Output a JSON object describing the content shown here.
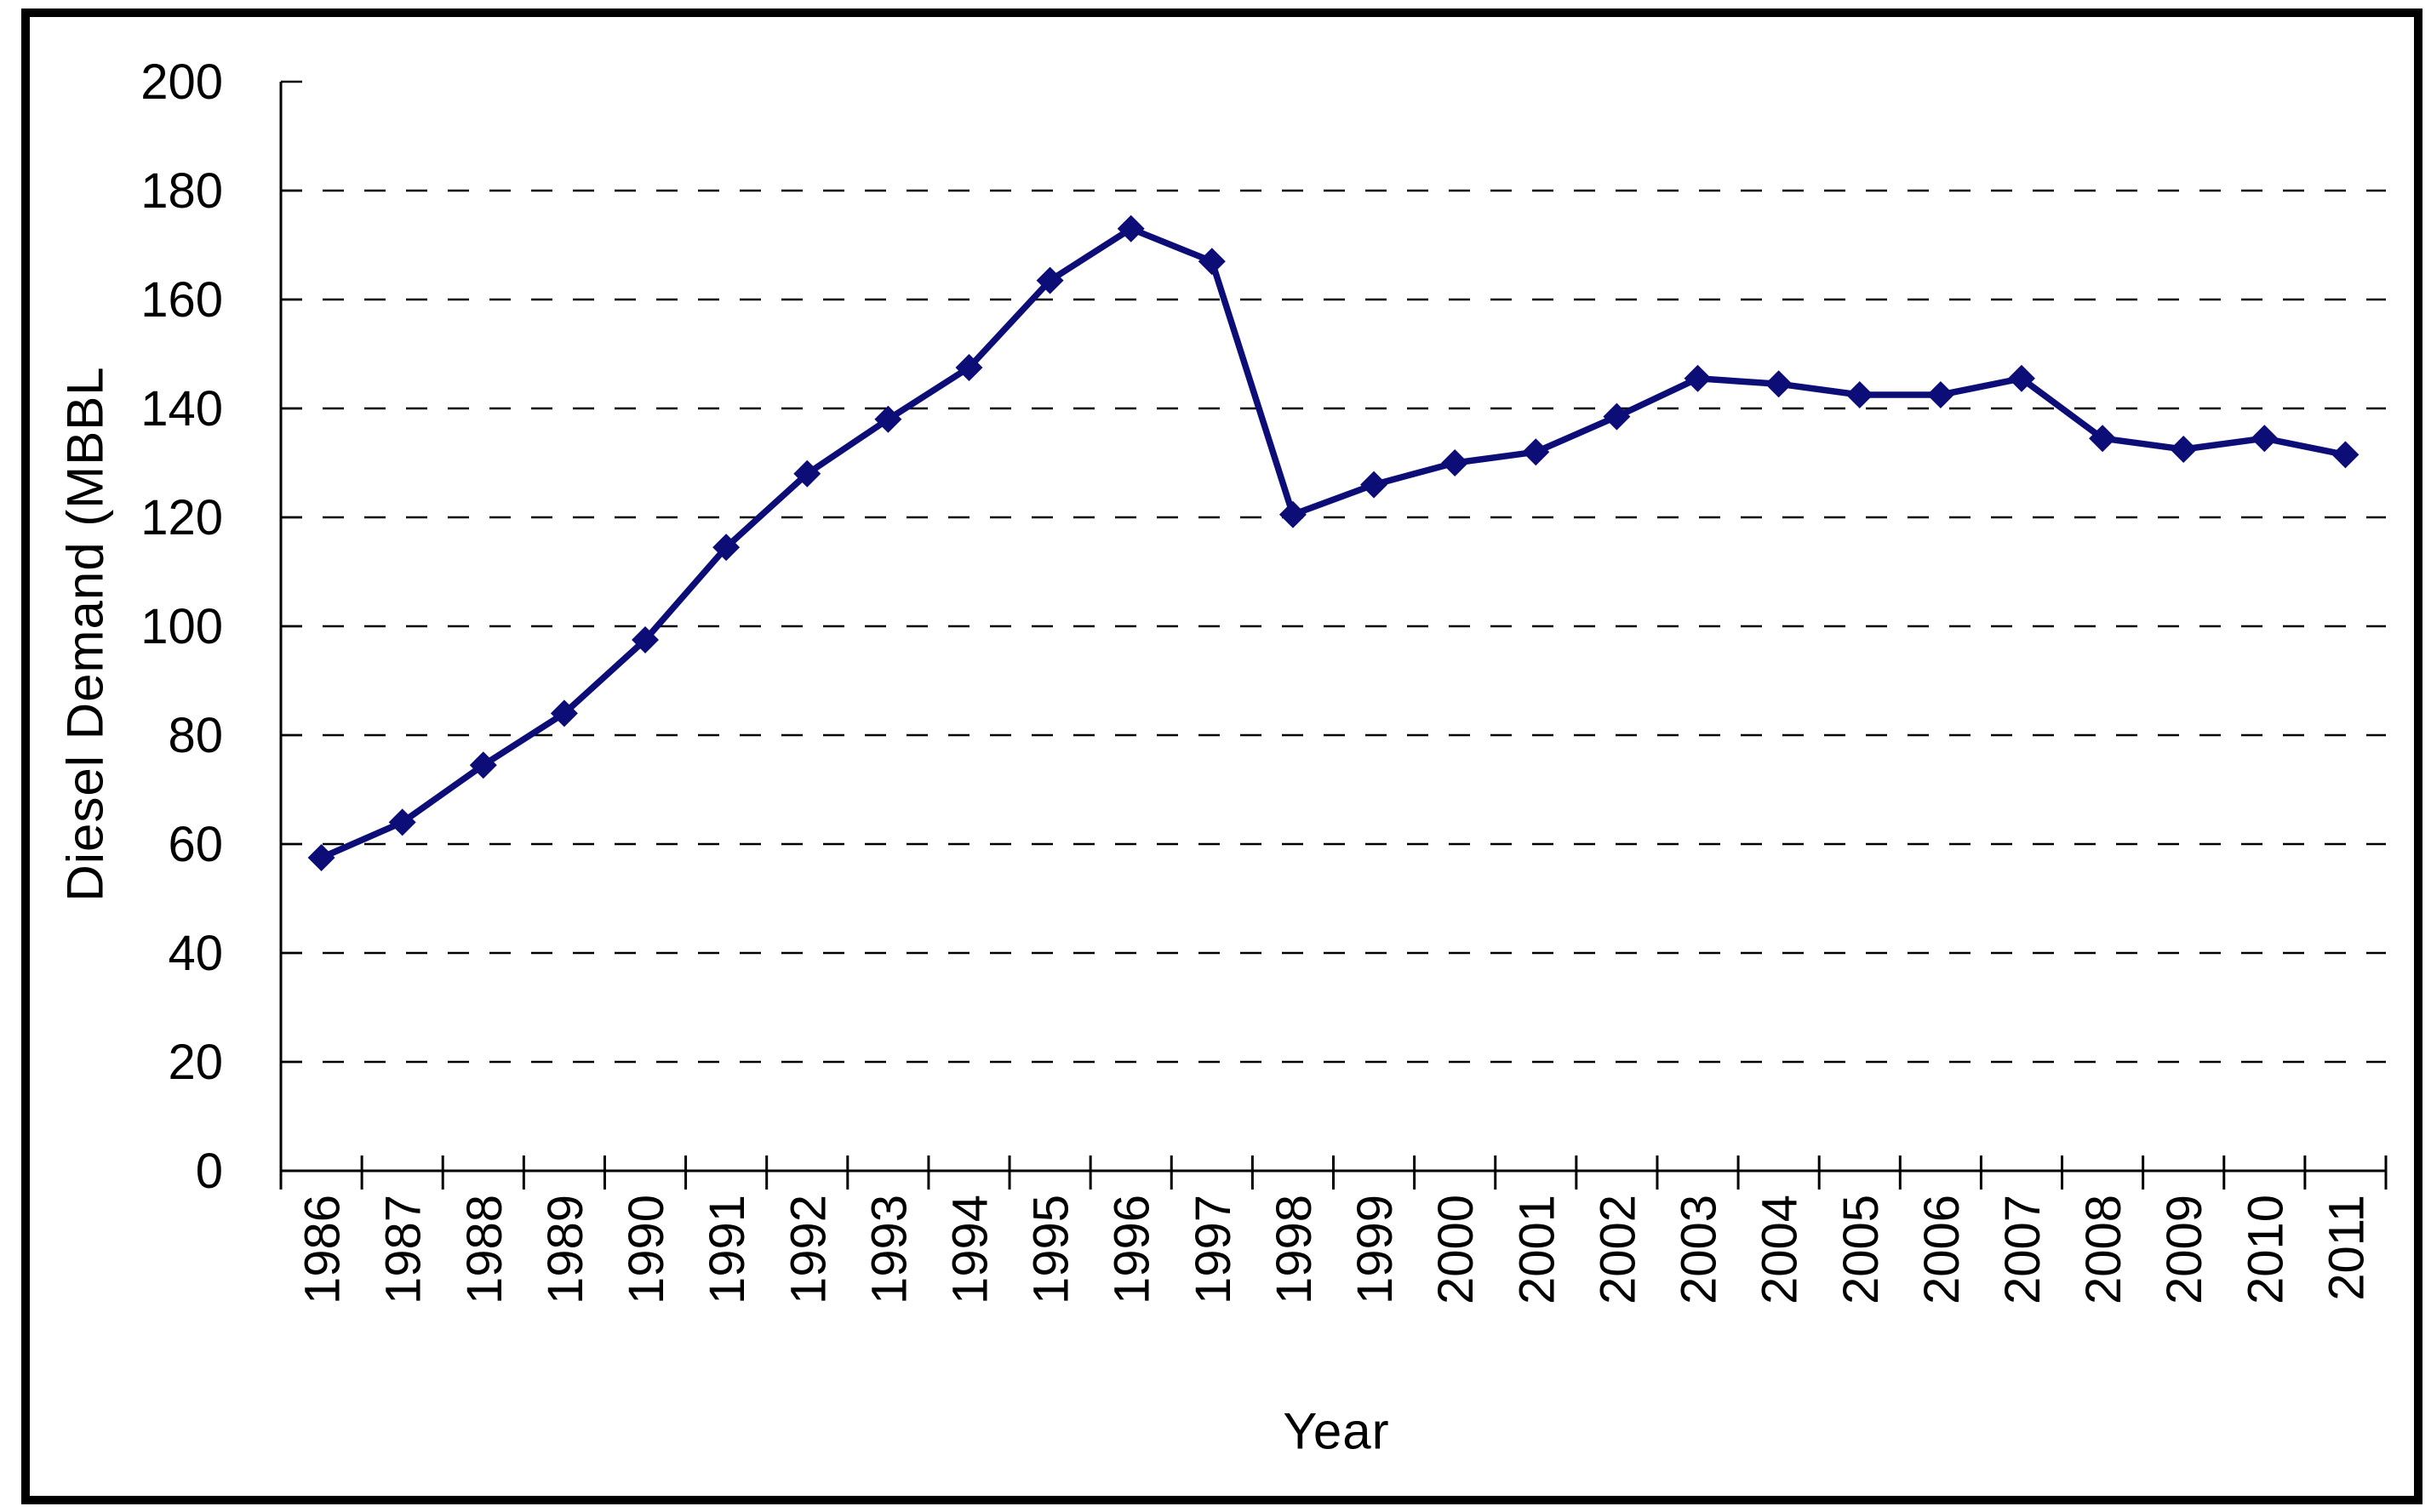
{
  "chart_data": {
    "type": "line",
    "title": "",
    "xlabel": "Year",
    "ylabel": "Diesel Demand (MBBL",
    "categories": [
      "1986",
      "1987",
      "1988",
      "1989",
      "1990",
      "1991",
      "1992",
      "1993",
      "1994",
      "1995",
      "1996",
      "1997",
      "1998",
      "1999",
      "2000",
      "2001",
      "2002",
      "2003",
      "2004",
      "2005",
      "2006",
      "2007",
      "2008",
      "2009",
      "2010",
      "2011"
    ],
    "series": [
      {
        "name": "Diesel Demand",
        "values": [
          57.5,
          64,
          74.5,
          84,
          97.5,
          114.5,
          128,
          138,
          147.5,
          163.5,
          173,
          167,
          120.5,
          126,
          130,
          132,
          138.5,
          145.5,
          144.5,
          142.5,
          142.5,
          145.5,
          134.5,
          132.5,
          134.5,
          131.5
        ]
      }
    ],
    "ylim": [
      0,
      200
    ],
    "yticks": [
      0,
      20,
      40,
      60,
      80,
      100,
      120,
      140,
      160,
      180,
      200
    ],
    "grid": "horizontal-dashed",
    "legend": "none",
    "marker": "diamond"
  },
  "colors": {
    "series": "#0d0d78",
    "axis": "#000000",
    "grid": "#000000",
    "text": "#000000",
    "background": "#ffffff",
    "border": "#000000"
  }
}
